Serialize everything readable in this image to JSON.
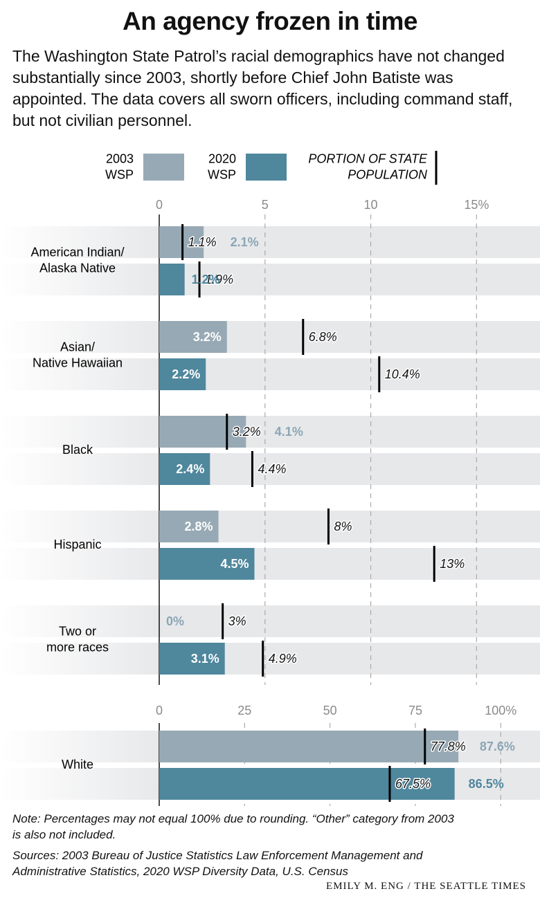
{
  "title": "An agency frozen in time",
  "subtitle": "The Washington State Patrol’s racial demographics have not changed substantially since 2003, shortly before Chief John Batiste was appointed. The data covers all sworn officers, including command staff, but not civilian personnel.",
  "note": "Note: Percentages may not equal 100% due to rounding. “Other” category from 2003 is also not included.",
  "sources": "Sources: 2003 Bureau of Justice Statistics Law Enforcement Management and Administrative Statistics, 2020 WSP Diversity Data, U.S. Census",
  "credit": "EMILY M. ENG / THE SEATTLE TIMES",
  "chart_data": [
    {
      "type": "bar",
      "population_name": "PORTION OF STATE\nPOPULATION",
      "categories": [
        "American Indian/\nAlaska Native",
        "Asian/\nNative Hawaiian",
        "Black",
        "Hispanic",
        "Two or\nmore races"
      ],
      "xlim": [
        0,
        18
      ],
      "xticks": [
        0,
        5,
        10,
        {
          "value": 15,
          "label": "15%"
        }
      ],
      "grid": true,
      "series": [
        {
          "name": "2003\nWSP",
          "color": "#97a9b4",
          "label_color": "#8ba6b6",
          "values": [
            2.1,
            3.2,
            4.1,
            2.8,
            0
          ],
          "value_labels": [
            "2.1%",
            "3.2%",
            "4.1%",
            "2.8%",
            "0%"
          ],
          "population": [
            1.1,
            6.8,
            3.2,
            8,
            3
          ],
          "population_labels": [
            "1.1%",
            "6.8%",
            "3.2%",
            "8%",
            "3%"
          ]
        },
        {
          "name": "2020\nWSP",
          "color": "#4f879d",
          "label_color": "#4f879d",
          "values": [
            1.2,
            2.2,
            2.4,
            4.5,
            3.1
          ],
          "value_labels": [
            "1.2%",
            "2.2%",
            "2.4%",
            "4.5%",
            "3.1%"
          ],
          "population": [
            1.9,
            10.4,
            4.4,
            13,
            4.9
          ],
          "population_labels": [
            "1.9%",
            "10.4%",
            "4.4%",
            "13%",
            "4.9%"
          ]
        }
      ]
    },
    {
      "type": "bar",
      "categories": [
        "White"
      ],
      "xlim": [
        0,
        111.5
      ],
      "xticks": [
        0,
        25,
        50,
        75,
        {
          "value": 100,
          "label": "100%"
        }
      ],
      "grid": true,
      "series": [
        {
          "color": "#97a9b4",
          "label_color": "#8ba6b6",
          "values": [
            87.6
          ],
          "value_labels": [
            "87.6%"
          ],
          "population": [
            77.8
          ],
          "population_labels": [
            "77.8%"
          ]
        },
        {
          "color": "#4f879d",
          "label_color": "#4f879d",
          "values": [
            86.5
          ],
          "value_labels": [
            "86.5%"
          ],
          "population": [
            67.5
          ],
          "population_labels": [
            "67.5%"
          ]
        }
      ]
    }
  ]
}
